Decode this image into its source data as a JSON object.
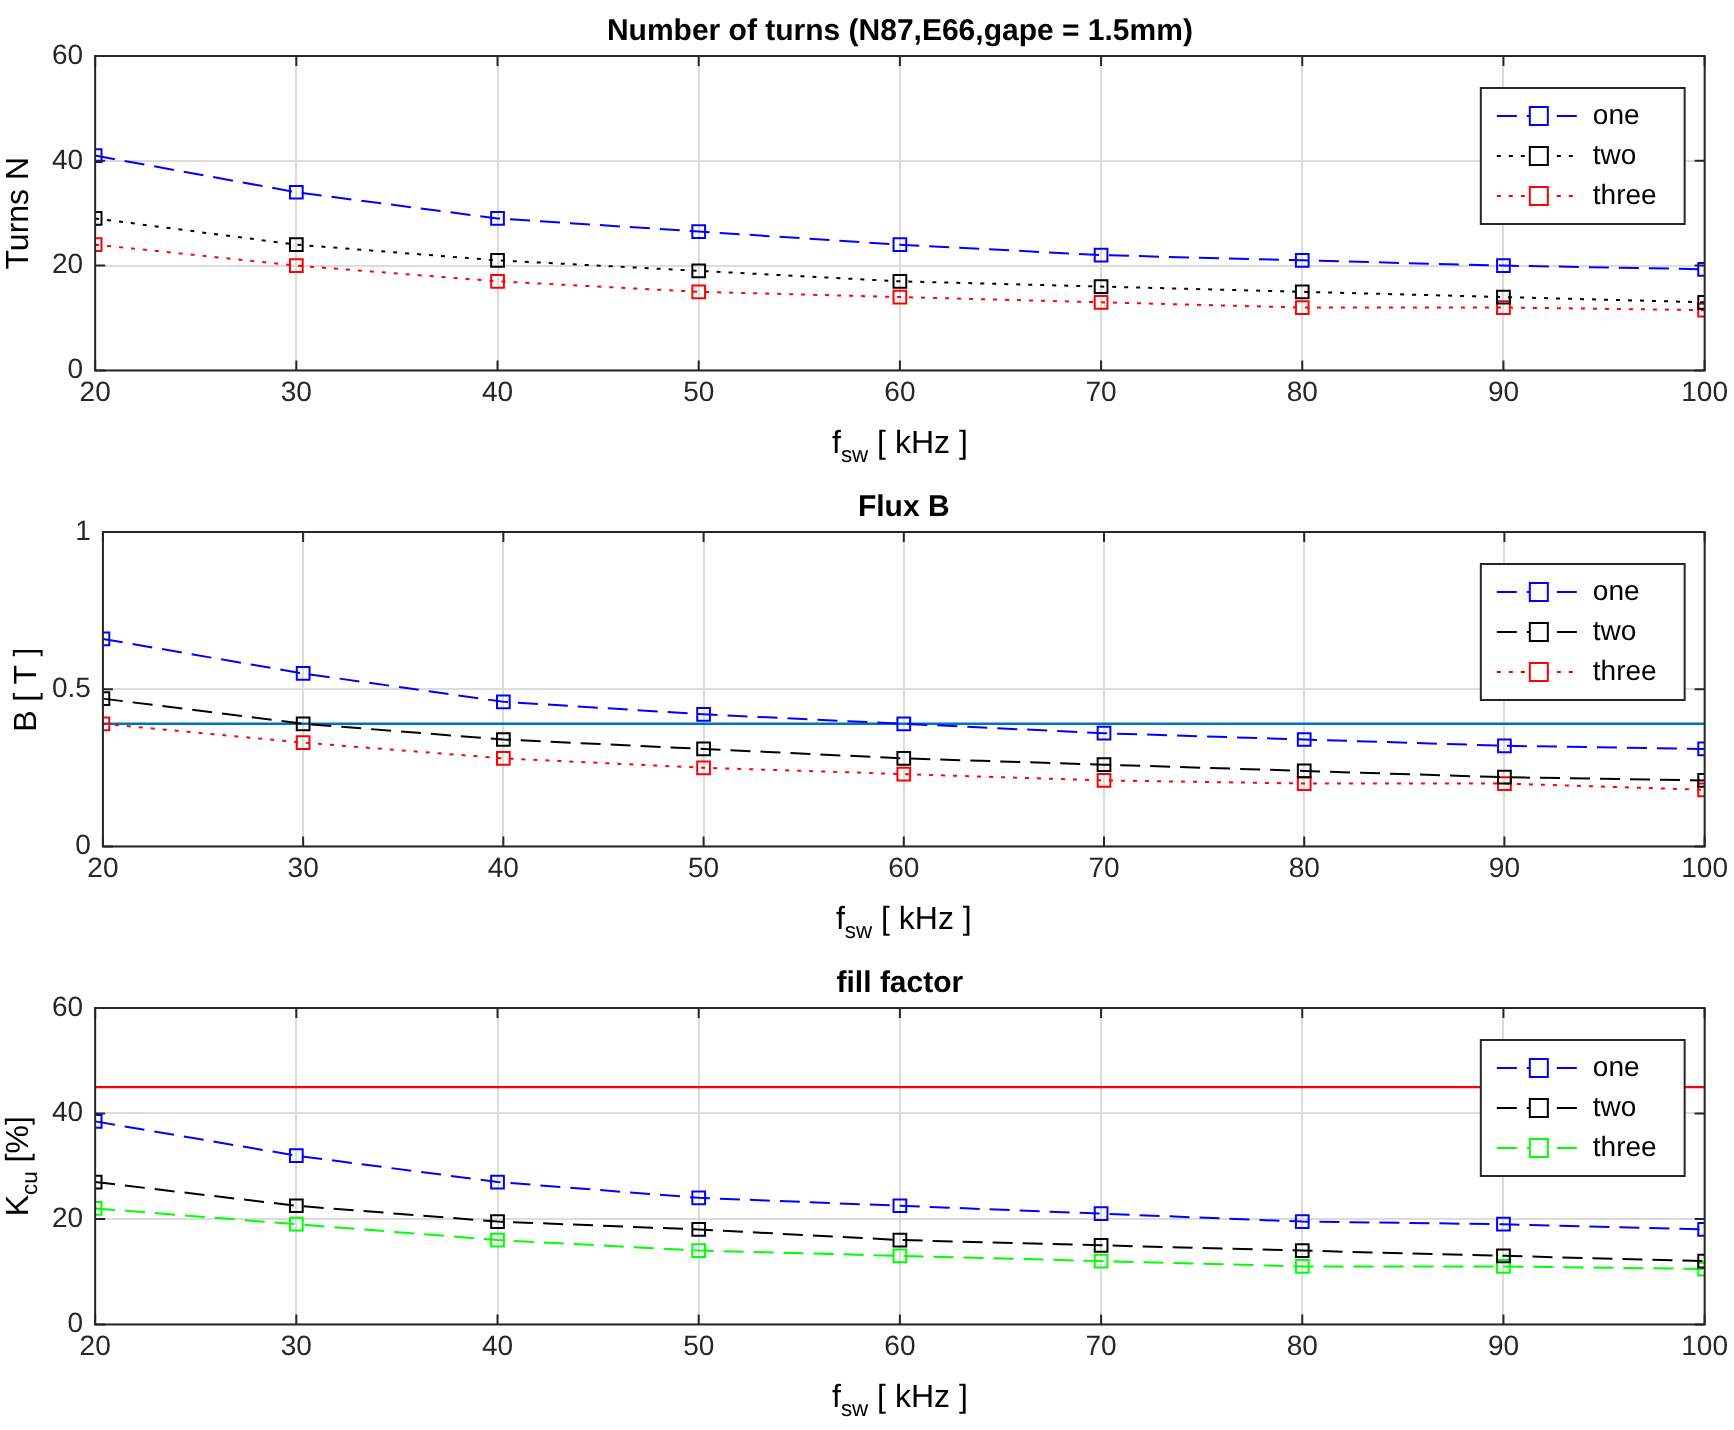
{
  "chart_data": [
    {
      "type": "line",
      "title": "Number of turns (N87,E66,gape = 1.5mm)",
      "xlabel": "f$_{sw}$ [ kHz ]",
      "ylabel": "Turns N",
      "x": [
        20,
        30,
        40,
        50,
        60,
        70,
        80,
        90,
        100
      ],
      "xlim": [
        20,
        100
      ],
      "xticks": [
        20,
        30,
        40,
        50,
        60,
        70,
        80,
        90,
        100
      ],
      "ylim": [
        0,
        60
      ],
      "yticks": [
        0,
        20,
        40,
        60
      ],
      "grid": true,
      "legend": "top right",
      "marker": "square",
      "series": [
        {
          "name": "one",
          "color": "#0000ff",
          "line_style": "dashed",
          "values": [
            41,
            34,
            29,
            26.5,
            24,
            22,
            21,
            20,
            19.3
          ]
        },
        {
          "name": "two",
          "color": "#000000",
          "line_style": "dotted",
          "values": [
            29,
            24,
            21,
            19,
            17,
            16,
            15,
            14,
            13
          ]
        },
        {
          "name": "three",
          "color": "#ff0000",
          "line_style": "dotted",
          "values": [
            24,
            20,
            17,
            15,
            14,
            13,
            12,
            12,
            11.5
          ]
        }
      ]
    },
    {
      "type": "line",
      "title": "Flux B",
      "xlabel": "f$_{sw}$ [ kHz ]",
      "ylabel": "B [ T ]",
      "x": [
        20,
        30,
        40,
        50,
        60,
        70,
        80,
        90,
        100
      ],
      "xlim": [
        20,
        100
      ],
      "xticks": [
        20,
        30,
        40,
        50,
        60,
        70,
        80,
        90,
        100
      ],
      "ylim": [
        0,
        1
      ],
      "yticks": [
        0,
        0.5,
        1
      ],
      "grid": true,
      "legend": "top right",
      "marker": "square",
      "ref_lines": [
        {
          "axis": "y",
          "value": 0.39,
          "color": "#0072bd"
        }
      ],
      "series": [
        {
          "name": "one",
          "color": "#0000ff",
          "line_style": "dashed",
          "values": [
            0.66,
            0.55,
            0.46,
            0.42,
            0.39,
            0.36,
            0.34,
            0.32,
            0.31
          ]
        },
        {
          "name": "two",
          "color": "#000000",
          "line_style": "dashed",
          "values": [
            0.47,
            0.39,
            0.34,
            0.31,
            0.28,
            0.26,
            0.24,
            0.22,
            0.21
          ]
        },
        {
          "name": "three",
          "color": "#ff0000",
          "line_style": "dotted",
          "values": [
            0.39,
            0.33,
            0.28,
            0.25,
            0.23,
            0.21,
            0.2,
            0.2,
            0.18
          ]
        }
      ]
    },
    {
      "type": "line",
      "title": "fill factor",
      "xlabel": "f$_{sw}$ [ kHz ]",
      "ylabel": "K$_{cu}$ [%]",
      "x": [
        20,
        30,
        40,
        50,
        60,
        70,
        80,
        90,
        100
      ],
      "xlim": [
        20,
        100
      ],
      "xticks": [
        20,
        30,
        40,
        50,
        60,
        70,
        80,
        90,
        100
      ],
      "ylim": [
        0,
        60
      ],
      "yticks": [
        0,
        20,
        40,
        60
      ],
      "grid": true,
      "legend": "top right",
      "marker": "square",
      "ref_lines": [
        {
          "axis": "y",
          "value": 45,
          "color": "#ff0000"
        }
      ],
      "series": [
        {
          "name": "one",
          "color": "#0000ff",
          "line_style": "dashed",
          "values": [
            38.5,
            32,
            27,
            24,
            22.5,
            21,
            19.5,
            19,
            18
          ]
        },
        {
          "name": "two",
          "color": "#000000",
          "line_style": "dashed",
          "values": [
            27,
            22.5,
            19.5,
            18,
            16,
            15,
            14,
            13,
            12
          ]
        },
        {
          "name": "three",
          "color": "#00ff00",
          "line_style": "dashed",
          "values": [
            22,
            19,
            16,
            14,
            13,
            12,
            11,
            11,
            10.5
          ]
        }
      ]
    }
  ]
}
